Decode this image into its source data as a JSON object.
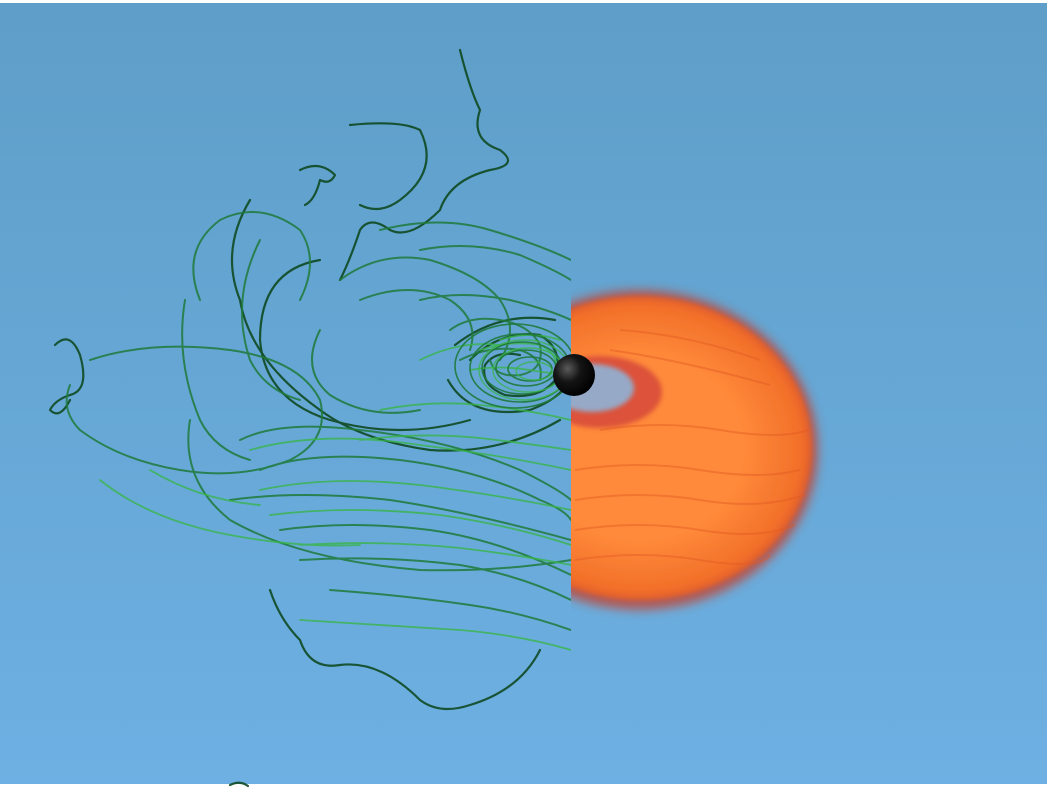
{
  "colors": {
    "background_top": "#5e9ec8",
    "background_bottom": "#6eb0e3",
    "field_line_dark": "#0f4a22",
    "field_line_mid": "#1f7a3a",
    "field_line_bright": "#39b54a",
    "disk_inner": "#ff8a3a",
    "disk_mid": "#f2702a",
    "disk_edge": "#c8412a",
    "disk_gap_blue": "#8fb3d6",
    "black_hole": "#0b0b0b"
  },
  "icons": {
    "black_hole": "black-sphere",
    "field_lines": "magnetic-field-lines",
    "accretion_disk": "orange-torus"
  }
}
